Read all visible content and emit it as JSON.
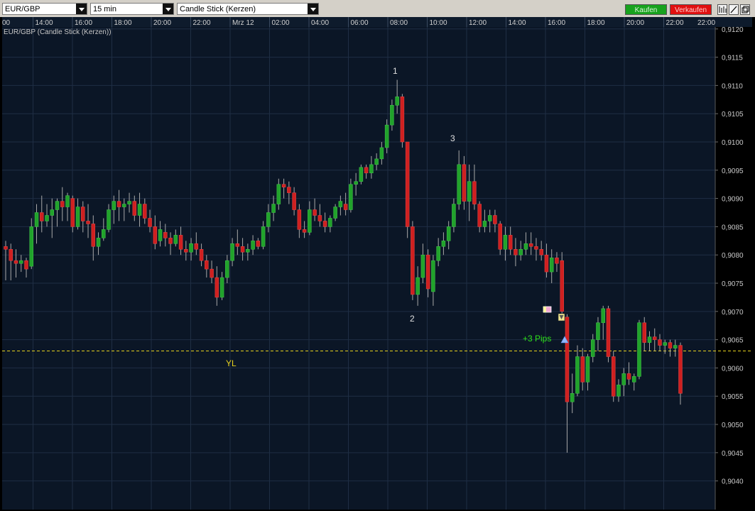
{
  "toolbar": {
    "symbol": "EUR/GBP",
    "timeframe": "15 min",
    "chart_style": "Candle Stick (Kerzen)",
    "buy_label": "Kaufen",
    "sell_label": "Verkaufen",
    "tools": [
      "bars-icon",
      "draw-line-icon",
      "window-icon"
    ]
  },
  "colors": {
    "background": "#0b1626",
    "grid": "#1f2e44",
    "bull": "#21a32b",
    "bear": "#cf2020",
    "wick": "#a8a8a8",
    "yl_line": "#e8d21d",
    "annotation_green": "#2de21a"
  },
  "chart_data": {
    "type": "candlestick",
    "title": "EUR/GBP (Candle Stick (Kerzen))",
    "x_tick_labels": [
      "00",
      "14:00",
      "16:00",
      "18:00",
      "20:00",
      "22:00",
      "Mrz 12",
      "02:00",
      "04:00",
      "06:00",
      "08:00",
      "10:00",
      "12:00",
      "14:00",
      "16:00",
      "18:00",
      "20:00",
      "22:00",
      "22:00"
    ],
    "y_tick_labels": [
      "0,9120",
      "0,9115",
      "0,9110",
      "0,9105",
      "0,9100",
      "0,9095",
      "0,9090",
      "0,9085",
      "0,9080",
      "0,9075",
      "0,9070",
      "0,9065",
      "0,9060",
      "0,9055",
      "0,9050",
      "0,9045",
      "0,9040"
    ],
    "ylim": [
      0.90392,
      0.91201
    ],
    "candles": [
      [
        0.90815,
        0.90825,
        0.90755,
        0.9081
      ],
      [
        0.9081,
        0.9082,
        0.90755,
        0.9079
      ],
      [
        0.9079,
        0.9081,
        0.9076,
        0.90785
      ],
      [
        0.90785,
        0.908,
        0.9077,
        0.9079
      ],
      [
        0.9079,
        0.90795,
        0.9076,
        0.90775
      ],
      [
        0.9078,
        0.90865,
        0.90775,
        0.9085
      ],
      [
        0.9085,
        0.9089,
        0.9082,
        0.90875
      ],
      [
        0.90875,
        0.90905,
        0.9084,
        0.9086
      ],
      [
        0.9086,
        0.9089,
        0.9085,
        0.9087
      ],
      [
        0.9087,
        0.909,
        0.9083,
        0.9088
      ],
      [
        0.9088,
        0.909,
        0.9085,
        0.90895
      ],
      [
        0.90895,
        0.9092,
        0.9086,
        0.90885
      ],
      [
        0.90885,
        0.9091,
        0.9086,
        0.90905
      ],
      [
        0.909,
        0.90905,
        0.9084,
        0.9085
      ],
      [
        0.9085,
        0.909,
        0.90845,
        0.90885
      ],
      [
        0.90885,
        0.90895,
        0.9084,
        0.9086
      ],
      [
        0.9086,
        0.9089,
        0.9083,
        0.90855
      ],
      [
        0.90855,
        0.9087,
        0.9079,
        0.90815
      ],
      [
        0.90815,
        0.9084,
        0.908,
        0.9083
      ],
      [
        0.9083,
        0.90865,
        0.90825,
        0.90845
      ],
      [
        0.90845,
        0.9089,
        0.9084,
        0.9088
      ],
      [
        0.9088,
        0.90905,
        0.90855,
        0.90895
      ],
      [
        0.90895,
        0.90915,
        0.9086,
        0.90885
      ],
      [
        0.90885,
        0.909,
        0.9086,
        0.9089
      ],
      [
        0.9089,
        0.9091,
        0.90875,
        0.90895
      ],
      [
        0.90895,
        0.90905,
        0.9086,
        0.9087
      ],
      [
        0.9087,
        0.9091,
        0.9085,
        0.9089
      ],
      [
        0.9089,
        0.909,
        0.90855,
        0.90865
      ],
      [
        0.90865,
        0.9088,
        0.9084,
        0.9085
      ],
      [
        0.9085,
        0.9087,
        0.9081,
        0.9082
      ],
      [
        0.90825,
        0.9086,
        0.90815,
        0.90845
      ],
      [
        0.9084,
        0.90855,
        0.90815,
        0.9083
      ],
      [
        0.9083,
        0.9084,
        0.908,
        0.9082
      ],
      [
        0.9082,
        0.90845,
        0.90815,
        0.90835
      ],
      [
        0.90835,
        0.9085,
        0.908,
        0.9081
      ],
      [
        0.9081,
        0.90825,
        0.9079,
        0.90805
      ],
      [
        0.90805,
        0.9083,
        0.9079,
        0.9082
      ],
      [
        0.9082,
        0.9084,
        0.908,
        0.9081
      ],
      [
        0.9081,
        0.9082,
        0.9078,
        0.9079
      ],
      [
        0.9079,
        0.908,
        0.9076,
        0.90775
      ],
      [
        0.90775,
        0.9079,
        0.9075,
        0.9076
      ],
      [
        0.9076,
        0.9078,
        0.9071,
        0.90725
      ],
      [
        0.90725,
        0.9077,
        0.9072,
        0.9076
      ],
      [
        0.9076,
        0.908,
        0.9075,
        0.9079
      ],
      [
        0.9079,
        0.9083,
        0.9078,
        0.9082
      ],
      [
        0.9082,
        0.90845,
        0.908,
        0.90815
      ],
      [
        0.90815,
        0.9083,
        0.9079,
        0.90805
      ],
      [
        0.90805,
        0.9082,
        0.9079,
        0.9081
      ],
      [
        0.9081,
        0.90835,
        0.908,
        0.90825
      ],
      [
        0.90825,
        0.9083,
        0.9081,
        0.90815
      ],
      [
        0.90815,
        0.9086,
        0.9081,
        0.9085
      ],
      [
        0.9085,
        0.9089,
        0.9084,
        0.90875
      ],
      [
        0.90875,
        0.90905,
        0.9086,
        0.9089
      ],
      [
        0.9089,
        0.90935,
        0.9088,
        0.90925
      ],
      [
        0.90925,
        0.90935,
        0.909,
        0.9092
      ],
      [
        0.9092,
        0.9093,
        0.9089,
        0.9091
      ],
      [
        0.9091,
        0.9092,
        0.9087,
        0.9088
      ],
      [
        0.9088,
        0.9089,
        0.9083,
        0.90845
      ],
      [
        0.90845,
        0.9086,
        0.9083,
        0.9084
      ],
      [
        0.9084,
        0.90895,
        0.90835,
        0.9088
      ],
      [
        0.9088,
        0.909,
        0.9086,
        0.9087
      ],
      [
        0.9087,
        0.9089,
        0.9085,
        0.9086
      ],
      [
        0.9086,
        0.90875,
        0.9084,
        0.9085
      ],
      [
        0.9085,
        0.9087,
        0.9084,
        0.90865
      ],
      [
        0.90865,
        0.9089,
        0.9086,
        0.90885
      ],
      [
        0.90885,
        0.90905,
        0.9087,
        0.90895
      ],
      [
        0.9089,
        0.9091,
        0.9087,
        0.9088
      ],
      [
        0.9088,
        0.90935,
        0.90875,
        0.90925
      ],
      [
        0.90925,
        0.90945,
        0.90905,
        0.9093
      ],
      [
        0.9093,
        0.9096,
        0.90925,
        0.90955
      ],
      [
        0.90955,
        0.9096,
        0.90935,
        0.90945
      ],
      [
        0.90945,
        0.90975,
        0.90935,
        0.9096
      ],
      [
        0.9096,
        0.9098,
        0.9095,
        0.9097
      ],
      [
        0.9097,
        0.91,
        0.9096,
        0.9099
      ],
      [
        0.9099,
        0.9104,
        0.9098,
        0.9103
      ],
      [
        0.9103,
        0.91075,
        0.9102,
        0.91065
      ],
      [
        0.91065,
        0.9111,
        0.9105,
        0.9108
      ],
      [
        0.9108,
        0.91085,
        0.9099,
        0.91
      ],
      [
        0.91,
        0.91,
        0.9083,
        0.9085
      ],
      [
        0.9085,
        0.9086,
        0.9072,
        0.9073
      ],
      [
        0.9073,
        0.9078,
        0.9071,
        0.9076
      ],
      [
        0.9076,
        0.9082,
        0.9075,
        0.908
      ],
      [
        0.908,
        0.9081,
        0.90725,
        0.9074
      ],
      [
        0.90735,
        0.908,
        0.9071,
        0.9079
      ],
      [
        0.9079,
        0.9083,
        0.9078,
        0.90815
      ],
      [
        0.90815,
        0.9084,
        0.908,
        0.90825
      ],
      [
        0.90825,
        0.9086,
        0.9081,
        0.9085
      ],
      [
        0.9085,
        0.909,
        0.9084,
        0.9089
      ],
      [
        0.9089,
        0.90985,
        0.9088,
        0.9096
      ],
      [
        0.9096,
        0.90975,
        0.9088,
        0.90895
      ],
      [
        0.90895,
        0.9096,
        0.9086,
        0.9093
      ],
      [
        0.9093,
        0.9096,
        0.9088,
        0.9089
      ],
      [
        0.9089,
        0.90895,
        0.9084,
        0.9085
      ],
      [
        0.9085,
        0.9088,
        0.9084,
        0.9086
      ],
      [
        0.9086,
        0.9088,
        0.9084,
        0.9087
      ],
      [
        0.9087,
        0.9088,
        0.9084,
        0.90855
      ],
      [
        0.90855,
        0.9086,
        0.908,
        0.9081
      ],
      [
        0.9081,
        0.9085,
        0.9079,
        0.90835
      ],
      [
        0.90835,
        0.9085,
        0.908,
        0.9081
      ],
      [
        0.9081,
        0.9083,
        0.9078,
        0.908
      ],
      [
        0.908,
        0.90825,
        0.9079,
        0.9081
      ],
      [
        0.9081,
        0.9084,
        0.908,
        0.9082
      ],
      [
        0.9082,
        0.9084,
        0.908,
        0.90815
      ],
      [
        0.90815,
        0.9083,
        0.9079,
        0.9081
      ],
      [
        0.9081,
        0.90825,
        0.9079,
        0.908
      ],
      [
        0.908,
        0.9082,
        0.9076,
        0.9077
      ],
      [
        0.9077,
        0.9081,
        0.9075,
        0.90795
      ],
      [
        0.90795,
        0.90805,
        0.9077,
        0.90785
      ],
      [
        0.9079,
        0.90805,
        0.9069,
        0.907
      ],
      [
        0.9069,
        0.90695,
        0.9045,
        0.9054
      ],
      [
        0.9054,
        0.9059,
        0.9052,
        0.90555
      ],
      [
        0.90555,
        0.9064,
        0.9055,
        0.9062
      ],
      [
        0.9062,
        0.90635,
        0.9056,
        0.90575
      ],
      [
        0.90575,
        0.90625,
        0.9056,
        0.9062
      ],
      [
        0.9062,
        0.9066,
        0.9061,
        0.9065
      ],
      [
        0.9065,
        0.9069,
        0.9063,
        0.9068
      ],
      [
        0.9068,
        0.9071,
        0.9065,
        0.90705
      ],
      [
        0.90705,
        0.9071,
        0.9061,
        0.9062
      ],
      [
        0.9062,
        0.9063,
        0.9054,
        0.9055
      ],
      [
        0.9055,
        0.9058,
        0.9054,
        0.9057
      ],
      [
        0.9057,
        0.906,
        0.9055,
        0.9059
      ],
      [
        0.9059,
        0.9061,
        0.9057,
        0.9058
      ],
      [
        0.90575,
        0.9059,
        0.9056,
        0.90585
      ],
      [
        0.90585,
        0.90685,
        0.9058,
        0.9068
      ],
      [
        0.9068,
        0.9069,
        0.9063,
        0.90645
      ],
      [
        0.90645,
        0.90665,
        0.9063,
        0.90655
      ],
      [
        0.90655,
        0.9067,
        0.9063,
        0.9065
      ],
      [
        0.9065,
        0.9066,
        0.9063,
        0.9064
      ],
      [
        0.9064,
        0.9065,
        0.90625,
        0.90645
      ],
      [
        0.90645,
        0.9065,
        0.9062,
        0.90635
      ],
      [
        0.90635,
        0.9065,
        0.9062,
        0.9064
      ],
      [
        0.9064,
        0.90645,
        0.90535,
        0.90555
      ]
    ],
    "annotations": [
      "1",
      "2",
      "3",
      "+3 Pips",
      "YL"
    ],
    "yl_level": 0.9063,
    "grid": true
  }
}
